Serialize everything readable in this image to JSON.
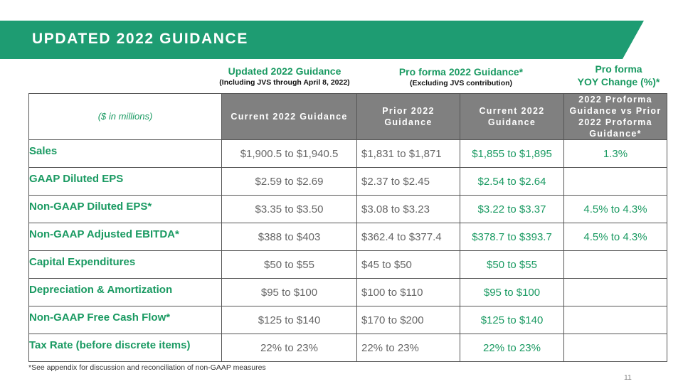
{
  "header": {
    "title": "UPDATED 2022 GUIDANCE"
  },
  "group_headers": [
    {
      "title": "Updated 2022 Guidance",
      "subtitle": "(Including JVS through April 8, 2022)"
    },
    {
      "title": "Pro forma 2022 Guidance*",
      "subtitle": "(Excluding JVS contribution)"
    },
    {
      "title": "Pro forma",
      "subtitle": "YOY Change (%)*"
    }
  ],
  "table": {
    "header": [
      "($ in millions)",
      "Current 2022 Guidance",
      "Prior 2022 Guidance",
      "Current 2022 Guidance",
      "2022 Proforma Guidance vs Prior 2022 Proforma Guidance*"
    ],
    "rows": [
      [
        "Sales",
        "$1,900.5 to $1,940.5",
        "$1,831 to $1,871",
        "$1,855 to $1,895",
        "1.3%"
      ],
      [
        "GAAP Diluted EPS",
        "$2.59 to $2.69",
        "$2.37 to $2.45",
        "$2.54 to $2.64",
        null
      ],
      [
        "Non-GAAP Diluted EPS*",
        "$3.35 to $3.50",
        "$3.08 to $3.23",
        "$3.22 to $3.37",
        "4.5% to 4.3%"
      ],
      [
        "Non-GAAP Adjusted EBITDA*",
        "$388 to $403",
        "$362.4 to $377.4",
        "$378.7 to $393.7",
        "4.5% to 4.3%"
      ],
      [
        "Capital Expenditures",
        "$50 to $55",
        "$45 to $50",
        "$50 to $55",
        null
      ],
      [
        "Depreciation & Amortization",
        "$95 to $100",
        "$100 to $110",
        "$95 to $100",
        null
      ],
      [
        "Non-GAAP Free Cash Flow*",
        "$125 to $140",
        "$170 to $200",
        "$125 to $140",
        null
      ],
      [
        "Tax Rate (before discrete items)",
        "22% to 23%",
        "22% to 23%",
        "22% to 23%",
        null
      ]
    ]
  },
  "footnote": "*See appendix for discussion and reconciliation of non-GAAP measures",
  "page_number": "11"
}
